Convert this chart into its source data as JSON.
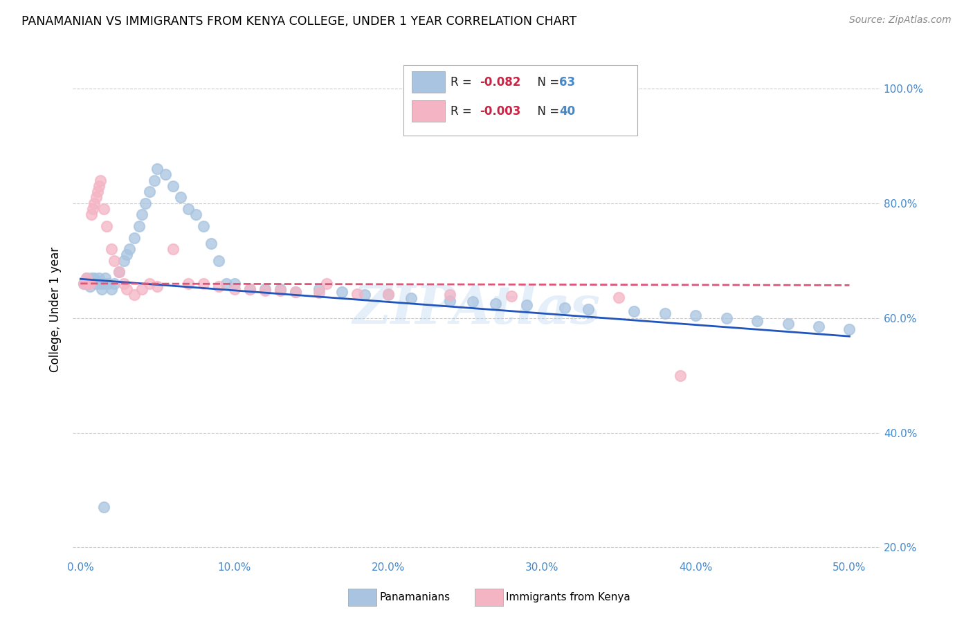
{
  "title": "PANAMANIAN VS IMMIGRANTS FROM KENYA COLLEGE, UNDER 1 YEAR CORRELATION CHART",
  "source": "Source: ZipAtlas.com",
  "ylabel": "College, Under 1 year",
  "xlim": [
    -0.005,
    0.52
  ],
  "ylim": [
    0.18,
    1.05
  ],
  "xtick_vals": [
    0.0,
    0.1,
    0.2,
    0.3,
    0.4,
    0.5
  ],
  "xtick_labels": [
    "0.0%",
    "10.0%",
    "20.0%",
    "30.0%",
    "40.0%",
    "50.0%"
  ],
  "ytick_vals": [
    0.2,
    0.4,
    0.6,
    0.8,
    1.0
  ],
  "ytick_labels": [
    "20.0%",
    "40.0%",
    "60.0%",
    "80.0%",
    "100.0%"
  ],
  "r_blue": -0.082,
  "n_blue": 63,
  "r_pink": -0.003,
  "n_pink": 40,
  "blue_color": "#a8c4e0",
  "pink_color": "#f4b4c4",
  "blue_line_color": "#2255bb",
  "pink_line_color": "#dd5577",
  "tick_color": "#4488cc",
  "watermark": "ZIPAtlas",
  "blue_scatter_x": [
    0.002,
    0.003,
    0.004,
    0.005,
    0.006,
    0.007,
    0.008,
    0.009,
    0.01,
    0.011,
    0.012,
    0.013,
    0.014,
    0.015,
    0.016,
    0.018,
    0.02,
    0.022,
    0.025,
    0.028,
    0.03,
    0.032,
    0.035,
    0.038,
    0.04,
    0.042,
    0.045,
    0.048,
    0.05,
    0.055,
    0.06,
    0.065,
    0.07,
    0.075,
    0.08,
    0.085,
    0.09,
    0.095,
    0.1,
    0.11,
    0.12,
    0.13,
    0.14,
    0.155,
    0.17,
    0.185,
    0.2,
    0.215,
    0.24,
    0.255,
    0.27,
    0.29,
    0.315,
    0.33,
    0.36,
    0.38,
    0.4,
    0.42,
    0.44,
    0.46,
    0.48,
    0.5,
    0.015
  ],
  "blue_scatter_y": [
    0.66,
    0.665,
    0.67,
    0.66,
    0.655,
    0.67,
    0.665,
    0.67,
    0.66,
    0.665,
    0.67,
    0.66,
    0.65,
    0.66,
    0.67,
    0.66,
    0.65,
    0.66,
    0.68,
    0.7,
    0.71,
    0.72,
    0.74,
    0.76,
    0.78,
    0.8,
    0.82,
    0.84,
    0.86,
    0.85,
    0.83,
    0.81,
    0.79,
    0.78,
    0.76,
    0.73,
    0.7,
    0.66,
    0.66,
    0.65,
    0.65,
    0.65,
    0.645,
    0.65,
    0.645,
    0.64,
    0.64,
    0.635,
    0.63,
    0.628,
    0.625,
    0.622,
    0.618,
    0.615,
    0.612,
    0.608,
    0.605,
    0.6,
    0.595,
    0.59,
    0.585,
    0.58,
    0.27
  ],
  "pink_scatter_x": [
    0.002,
    0.003,
    0.004,
    0.005,
    0.006,
    0.007,
    0.008,
    0.009,
    0.01,
    0.011,
    0.012,
    0.013,
    0.015,
    0.017,
    0.02,
    0.022,
    0.025,
    0.028,
    0.03,
    0.035,
    0.04,
    0.045,
    0.05,
    0.06,
    0.07,
    0.08,
    0.09,
    0.1,
    0.11,
    0.12,
    0.13,
    0.14,
    0.155,
    0.18,
    0.2,
    0.24,
    0.28,
    0.35,
    0.39,
    0.16
  ],
  "pink_scatter_y": [
    0.66,
    0.665,
    0.67,
    0.66,
    0.66,
    0.78,
    0.79,
    0.8,
    0.81,
    0.82,
    0.83,
    0.84,
    0.79,
    0.76,
    0.72,
    0.7,
    0.68,
    0.66,
    0.65,
    0.64,
    0.65,
    0.66,
    0.655,
    0.72,
    0.66,
    0.66,
    0.655,
    0.65,
    0.65,
    0.648,
    0.648,
    0.645,
    0.644,
    0.642,
    0.642,
    0.64,
    0.638,
    0.636,
    0.5,
    0.66
  ],
  "blue_line_x": [
    0.0,
    0.5
  ],
  "blue_line_y": [
    0.668,
    0.568
  ],
  "pink_line_x": [
    0.0,
    0.5
  ],
  "pink_line_y": [
    0.66,
    0.657
  ]
}
